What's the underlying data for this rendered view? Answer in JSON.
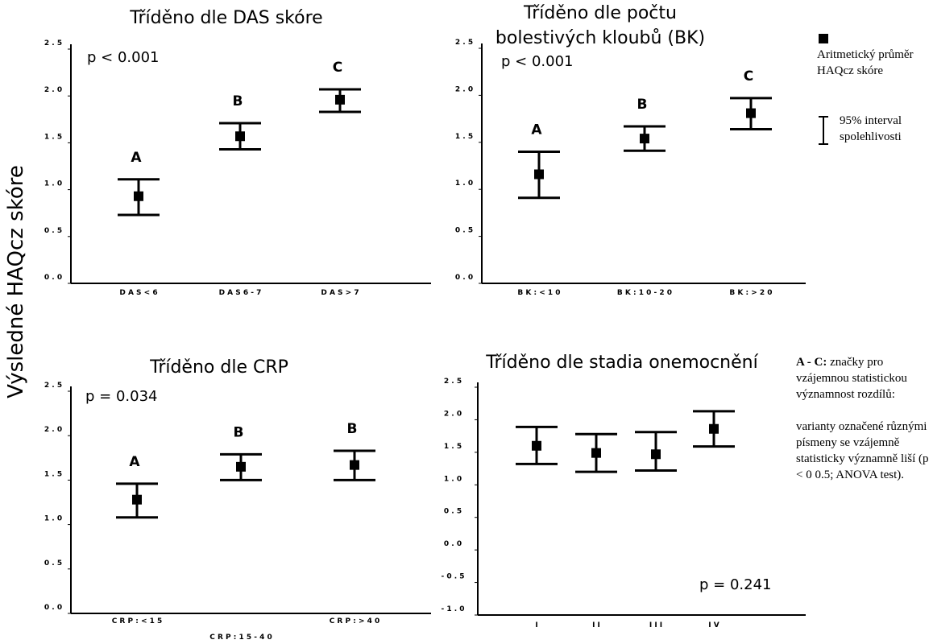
{
  "y_axis_title": "Výsledné HAQcz skóre",
  "legend": {
    "mean_label": "Aritmetický průměr HAQcz skóre",
    "ci_label": "95% interval spolehlivosti"
  },
  "note": {
    "bold": "A - C:",
    "text1": "značky pro vzájemnou statistickou významnost rozdílů:",
    "text2": "varianty označené různými písmeny se vzájemně statisticky významně liší (p < 0 0.5; ANOVA test)."
  },
  "chart_data": [
    {
      "type": "scatter",
      "title": "Tříděno dle DAS skóre",
      "pvalue": "p < 0.001",
      "ylim": [
        0,
        2.5
      ],
      "yticks": [
        "0 . 0",
        "0 . 5",
        "1 . 0",
        "1 . 5",
        "2 . 0",
        "2 . 5"
      ],
      "categories": [
        "D A S  <  6",
        "D A S  6  -  7",
        "D A S  >  7"
      ],
      "series": [
        {
          "values": [
            0.93,
            1.57,
            1.96
          ],
          "lower": [
            0.73,
            1.43,
            1.83
          ],
          "upper": [
            1.11,
            1.71,
            2.07
          ]
        }
      ],
      "letters": [
        "A",
        "B",
        "C"
      ]
    },
    {
      "type": "scatter",
      "title": "Tříděno dle počtu bolestivých kloubů (BK)",
      "title_lines": [
        "Tříděno dle počtu",
        "bolestivých kloubů (BK)"
      ],
      "pvalue": "p < 0.001",
      "ylim": [
        0,
        2.5
      ],
      "yticks": [
        "0 . 0",
        "0 . 5",
        "1 . 0",
        "1 . 5",
        "2 . 0",
        "2 . 5"
      ],
      "categories": [
        "B K  :  < 1 0",
        "B K  :  1 0 - 2 0",
        "B K  :  > 2 0"
      ],
      "series": [
        {
          "values": [
            1.16,
            1.54,
            1.81
          ],
          "lower": [
            0.91,
            1.41,
            1.64
          ],
          "upper": [
            1.4,
            1.67,
            1.97
          ]
        }
      ],
      "letters": [
        "A",
        "B",
        "C"
      ]
    },
    {
      "type": "scatter",
      "title": "Tříděno dle CRP",
      "pvalue": "p = 0.034",
      "ylim": [
        0,
        2.5
      ],
      "yticks": [
        "0 . 0",
        "0 . 5",
        "1 . 0",
        "1 . 5",
        "2 . 0",
        "2 . 5"
      ],
      "categories": [
        "C R P  :  < 1 5",
        "C R P  :  1 5 - 4 0",
        "C R P  :  > 4 0"
      ],
      "series": [
        {
          "values": [
            1.28,
            1.65,
            1.67
          ],
          "lower": [
            1.08,
            1.5,
            1.5
          ],
          "upper": [
            1.46,
            1.79,
            1.83
          ]
        }
      ],
      "letters": [
        "A",
        "B",
        "B"
      ]
    },
    {
      "type": "scatter",
      "title": "Tříděno dle stadia onemocnění",
      "pvalue": "p = 0.241",
      "ylim": [
        -1.0,
        2.5
      ],
      "yticks": [
        "- 1 . 0",
        "- 0 . 5",
        "0 . 0",
        "0 . 5",
        "1 . 0",
        "1 . 5",
        "2 . 0",
        "2 . 5"
      ],
      "categories": [
        "I",
        "I I",
        "I I I",
        "I V"
      ],
      "series": [
        {
          "values": [
            1.6,
            1.49,
            1.47,
            1.86
          ],
          "lower": [
            1.32,
            1.2,
            1.22,
            1.59
          ],
          "upper": [
            1.89,
            1.78,
            1.81,
            2.13
          ]
        }
      ],
      "letters": []
    }
  ]
}
